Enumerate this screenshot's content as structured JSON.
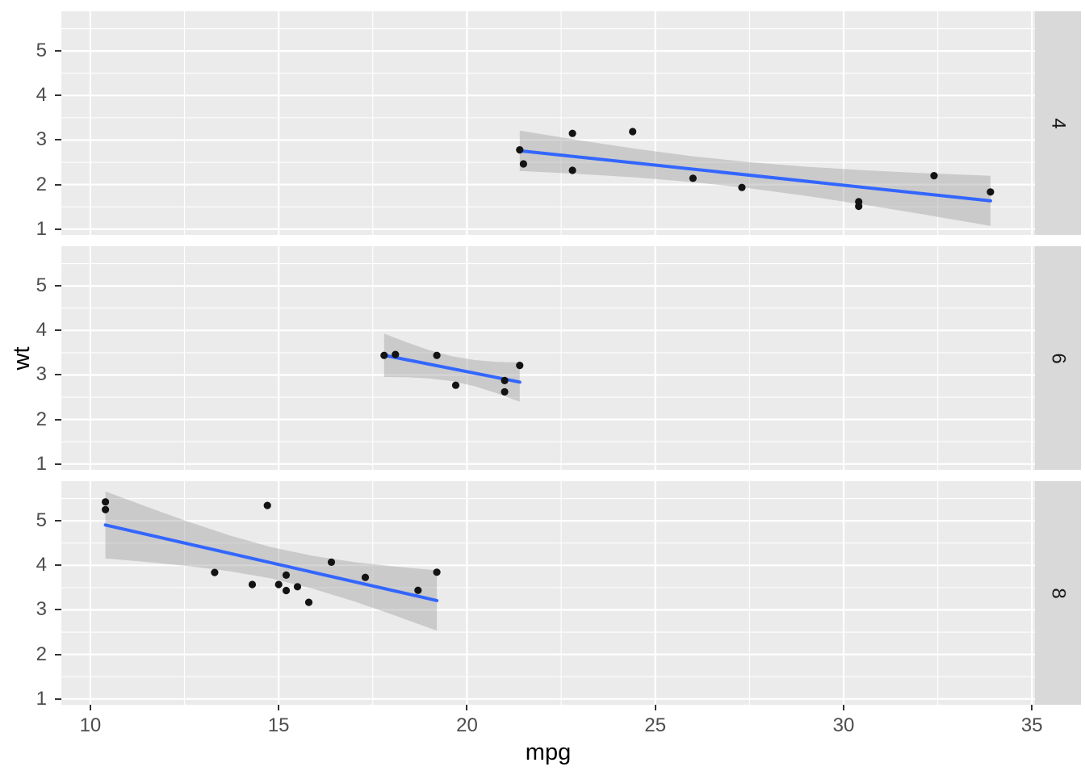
{
  "chart_data": {
    "type": "scatter",
    "title": "",
    "xlabel": "mpg",
    "ylabel": "wt",
    "legend_position": "none",
    "grid": true,
    "xlim": [
      9.23,
      35.08
    ],
    "ylim": [
      0.87,
      5.89
    ],
    "x_ticks": [
      10,
      15,
      20,
      25,
      30,
      35
    ],
    "x_tick_minor": [
      12.5,
      17.5,
      22.5,
      27.5,
      32.5
    ],
    "y_ticks": [
      1,
      2,
      3,
      4,
      5
    ],
    "y_tick_minor": [
      1.5,
      2.5,
      3.5,
      4.5,
      5.5
    ],
    "facet_variable_values": [
      "4",
      "6",
      "8"
    ],
    "facets": [
      {
        "label": "4",
        "points": [
          [
            22.8,
            2.32
          ],
          [
            24.4,
            3.19
          ],
          [
            22.8,
            3.15
          ],
          [
            32.4,
            2.2
          ],
          [
            30.4,
            1.615
          ],
          [
            33.9,
            1.835
          ],
          [
            21.5,
            2.465
          ],
          [
            27.3,
            1.935
          ],
          [
            26.0,
            2.14
          ],
          [
            30.4,
            1.513
          ],
          [
            21.4,
            2.78
          ]
        ],
        "smooth": {
          "x": [
            21.4,
            33.9
          ],
          "y": [
            2.76,
            1.634
          ]
        },
        "ribbon": [
          [
            21.4,
            2.306,
            3.214
          ],
          [
            23,
            2.239,
            2.993
          ],
          [
            24.5,
            2.159,
            2.801
          ],
          [
            26,
            2.055,
            2.635
          ],
          [
            27.5,
            1.918,
            2.502
          ],
          [
            29,
            1.748,
            2.402
          ],
          [
            30.5,
            1.555,
            2.325
          ],
          [
            32,
            1.348,
            2.262
          ],
          [
            33.9,
            1.072,
            2.196
          ]
        ]
      },
      {
        "label": "6",
        "points": [
          [
            21.0,
            2.62
          ],
          [
            21.0,
            2.875
          ],
          [
            21.4,
            3.215
          ],
          [
            18.1,
            3.46
          ],
          [
            19.2,
            3.44
          ],
          [
            17.8,
            3.44
          ],
          [
            19.7,
            2.77
          ]
        ],
        "smooth": {
          "x": [
            17.8,
            21.4
          ],
          "y": [
            3.442,
            2.84
          ]
        },
        "ribbon": [
          [
            17.8,
            2.954,
            3.93
          ],
          [
            18.4,
            2.949,
            3.734
          ],
          [
            19.0,
            2.924,
            3.558
          ],
          [
            19.6,
            2.862,
            3.42
          ],
          [
            20.2,
            2.748,
            3.334
          ],
          [
            20.8,
            2.587,
            3.293
          ],
          [
            21.4,
            2.4,
            3.281
          ]
        ]
      },
      {
        "label": "8",
        "points": [
          [
            18.7,
            3.44
          ],
          [
            14.3,
            3.57
          ],
          [
            16.4,
            4.07
          ],
          [
            17.3,
            3.73
          ],
          [
            15.2,
            3.78
          ],
          [
            10.4,
            5.25
          ],
          [
            10.4,
            5.424
          ],
          [
            14.7,
            5.345
          ],
          [
            15.5,
            3.52
          ],
          [
            15.2,
            3.435
          ],
          [
            13.3,
            3.84
          ],
          [
            19.2,
            3.845
          ],
          [
            15.8,
            3.17
          ],
          [
            15.0,
            3.57
          ]
        ],
        "smooth": {
          "x": [
            10.4,
            19.2
          ],
          "y": [
            4.906,
            3.209
          ]
        },
        "ribbon": [
          [
            10.4,
            4.154,
            5.658
          ],
          [
            11.5,
            4.076,
            5.313
          ],
          [
            12.6,
            3.984,
            4.98
          ],
          [
            13.7,
            3.868,
            4.672
          ],
          [
            14.8,
            3.706,
            4.41
          ],
          [
            15.9,
            3.478,
            4.213
          ],
          [
            17.0,
            3.192,
            4.075
          ],
          [
            18.1,
            2.871,
            3.972
          ],
          [
            19.2,
            2.531,
            3.887
          ]
        ]
      }
    ],
    "colors": {
      "panel_bg": "#EBEBEB",
      "strip_bg": "#D9D9D9",
      "grid": "#FFFFFF",
      "point": "#131313",
      "smooth_line": "#3366FF",
      "ribbon": "rgba(153,153,153,0.4)",
      "tick_label": "#4D4D4D",
      "tick_mark": "#333333",
      "axis_title": "#000000",
      "strip_text": "#1A1A1A"
    }
  }
}
